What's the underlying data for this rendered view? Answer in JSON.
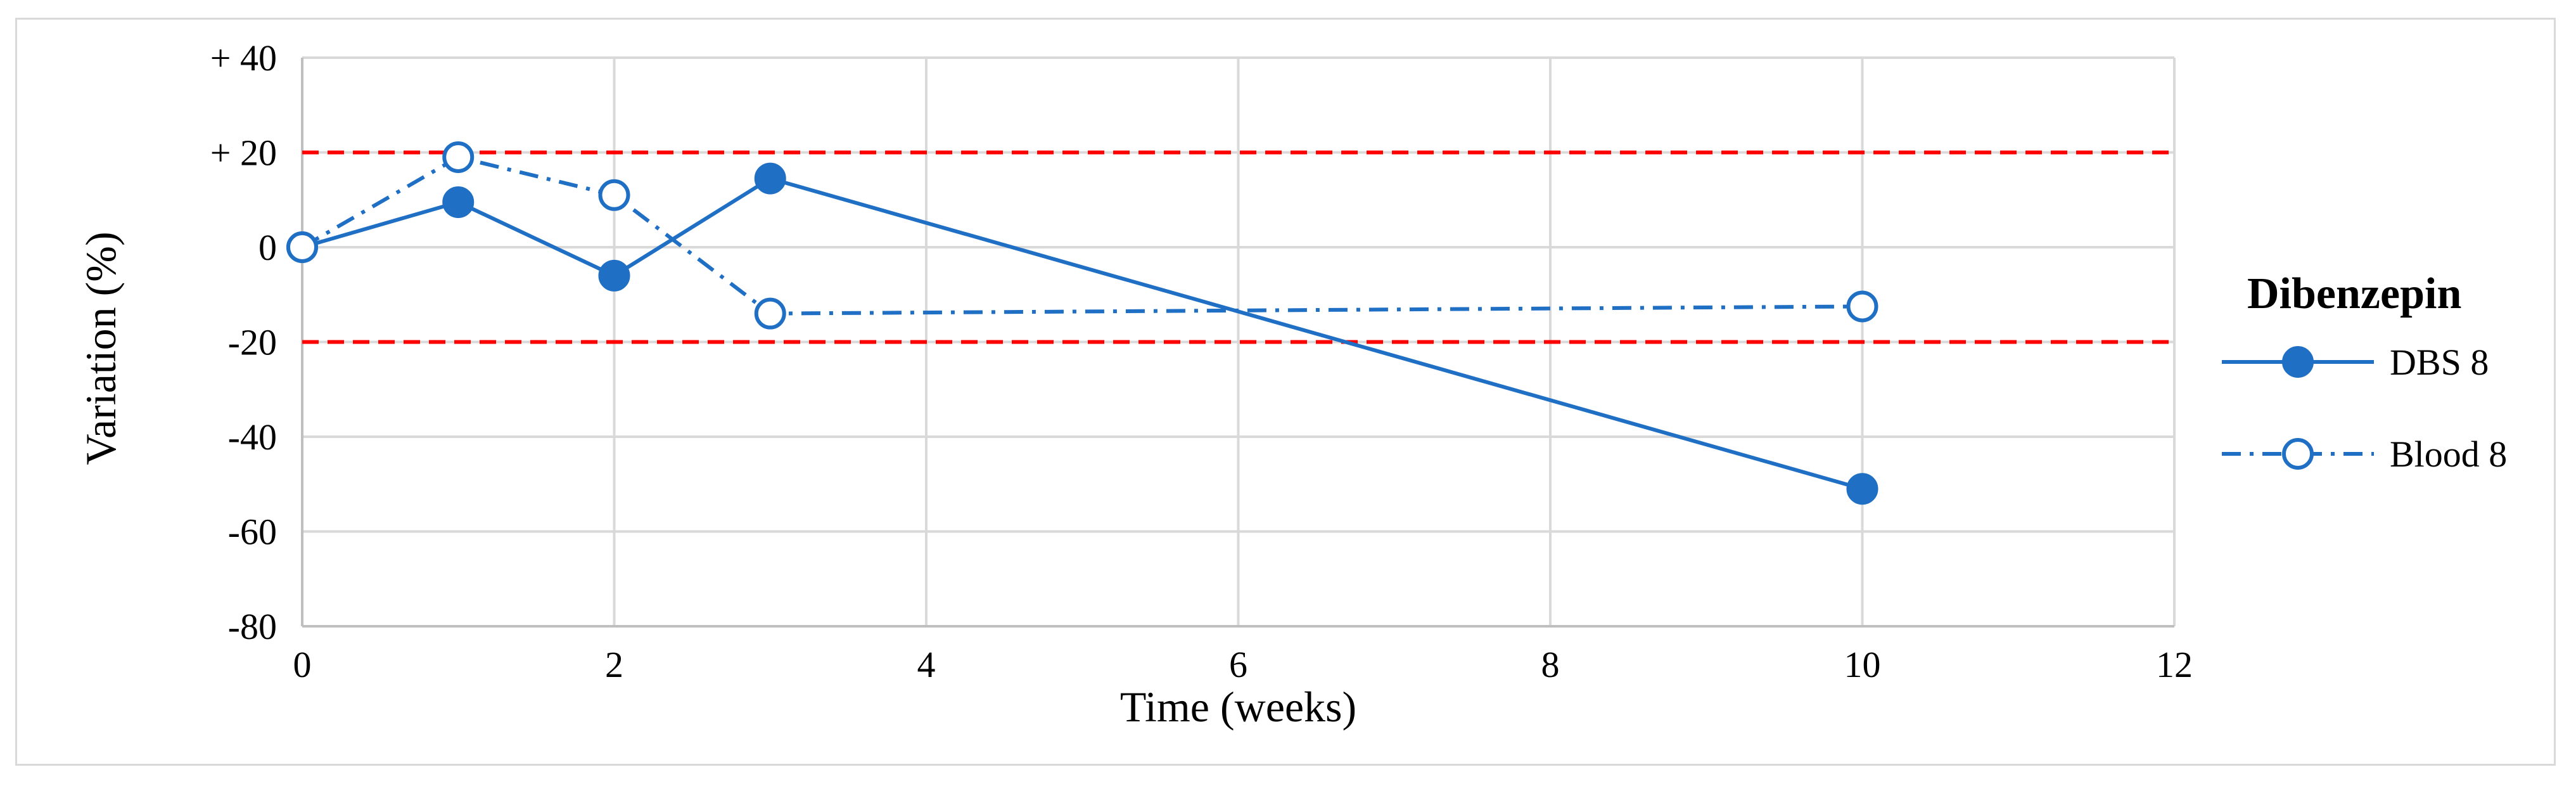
{
  "chart_data": {
    "type": "line",
    "xlabel": "Time (weeks)",
    "ylabel": "Variation (%)",
    "xlim": [
      0,
      12
    ],
    "ylim": [
      -80,
      40
    ],
    "x_ticks": [
      {
        "value": 0,
        "label": "0"
      },
      {
        "value": 2,
        "label": "2"
      },
      {
        "value": 4,
        "label": "4"
      },
      {
        "value": 6,
        "label": "6"
      },
      {
        "value": 8,
        "label": "8"
      },
      {
        "value": 10,
        "label": "10"
      },
      {
        "value": 12,
        "label": "12"
      }
    ],
    "y_ticks": [
      {
        "value": 40,
        "label": "+ 40"
      },
      {
        "value": 20,
        "label": "+ 20"
      },
      {
        "value": 0,
        "label": "0"
      },
      {
        "value": -20,
        "label": "-20"
      },
      {
        "value": -40,
        "label": "-40"
      },
      {
        "value": -60,
        "label": "-60"
      },
      {
        "value": -80,
        "label": "-80"
      }
    ],
    "grid": true,
    "reference_lines": [
      {
        "y": 20,
        "color": "#ff0000",
        "style": "dashed"
      },
      {
        "y": -20,
        "color": "#ff0000",
        "style": "dashed"
      }
    ],
    "legend": {
      "title": "Dibenzepin",
      "position": "right"
    },
    "series": [
      {
        "name": "DBS 8",
        "x": [
          0,
          1,
          2,
          3,
          10
        ],
        "y": [
          0,
          9.5,
          -6,
          14.5,
          -51
        ],
        "color": "#1f6fc5",
        "line_style": "solid",
        "marker": "filled-circle"
      },
      {
        "name": "Blood 8",
        "x": [
          0,
          1,
          2,
          3,
          10
        ],
        "y": [
          0,
          19,
          11,
          -14,
          -12.5
        ],
        "color": "#1f6fc5",
        "line_style": "dash-dot",
        "marker": "open-circle"
      }
    ]
  }
}
